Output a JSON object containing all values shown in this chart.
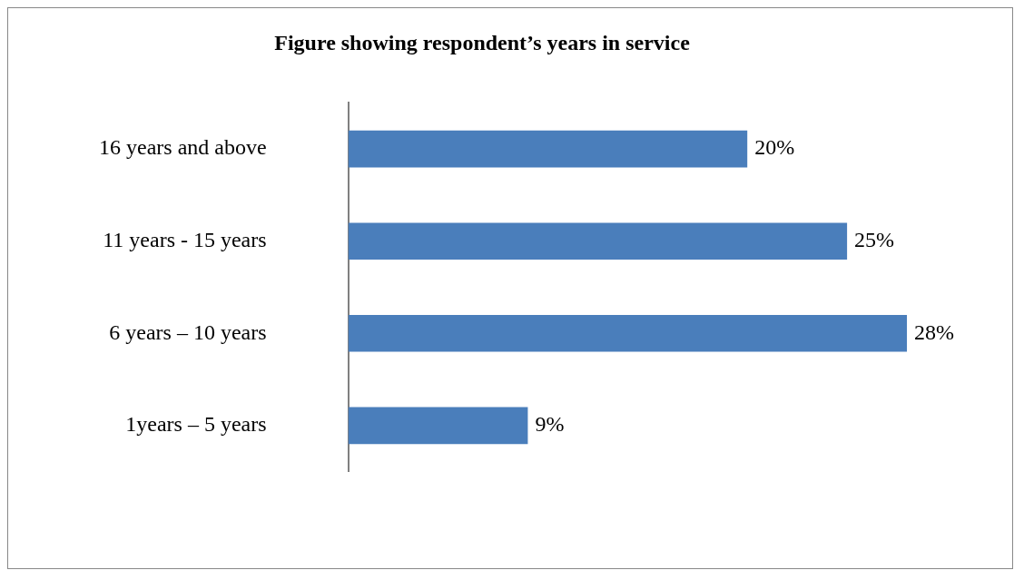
{
  "chart_data": {
    "type": "bar",
    "orientation": "horizontal",
    "title": "Figure showing respondent’s years in service",
    "categories": [
      "16 years and above",
      "11 years - 15 years",
      "6 years – 10 years",
      "1years – 5 years"
    ],
    "values": [
      20,
      25,
      28,
      9
    ],
    "color": "#4a7ebb",
    "value_labels": [
      "20%",
      "25%",
      "28%",
      "9%"
    ],
    "grid": false,
    "legend": false
  }
}
